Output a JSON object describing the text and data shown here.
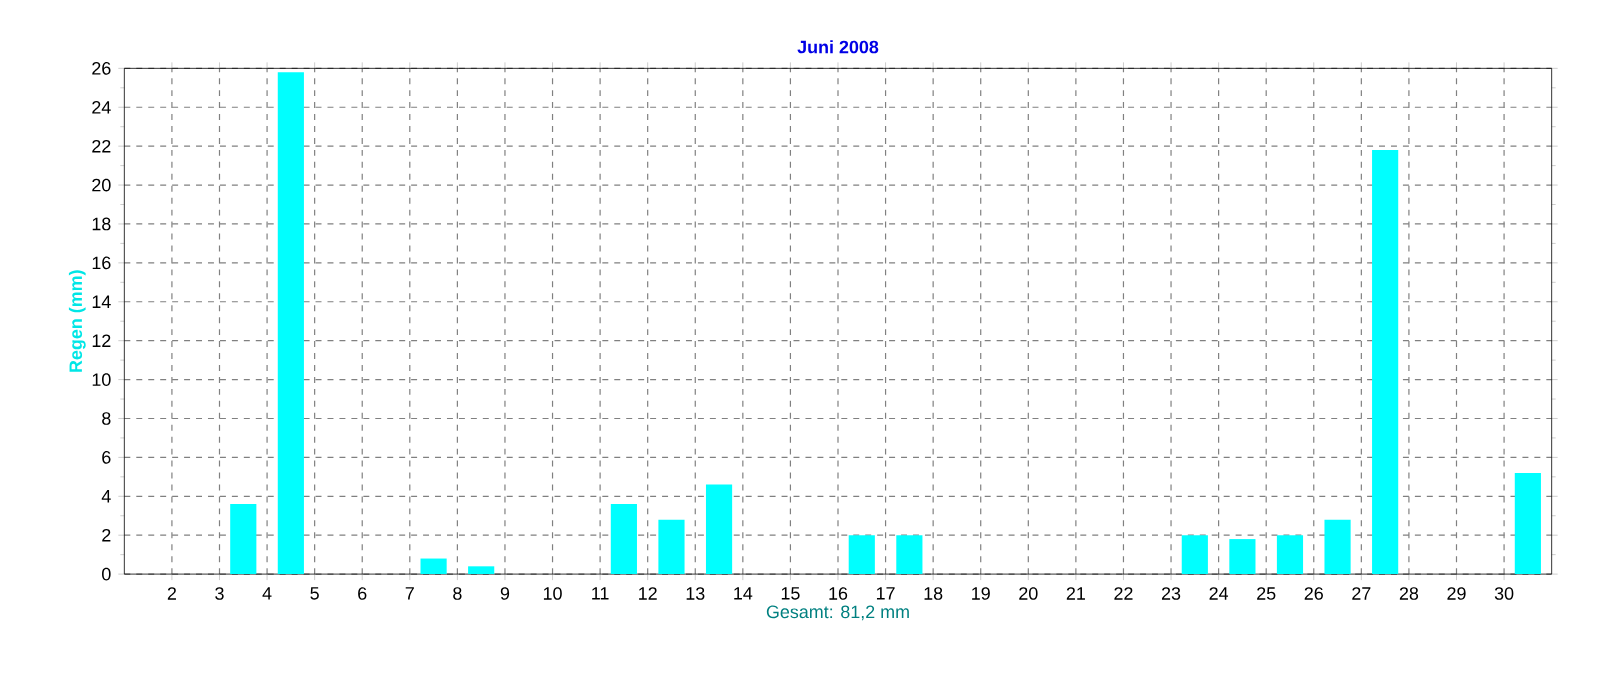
{
  "chart_data": {
    "type": "bar",
    "title": "Juni 2008",
    "ylabel": "Regen  (mm)",
    "xlabel": "Gesamt: 81,2 mm",
    "x": [
      1.5,
      2.5,
      3.5,
      4.5,
      5.5,
      6.5,
      7.5,
      8.5,
      9.5,
      10.5,
      11.5,
      12.5,
      13.5,
      14.5,
      15.5,
      16.5,
      17.5,
      18.5,
      19.5,
      20.5,
      21.5,
      22.5,
      23.5,
      24.5,
      25.5,
      26.5,
      27.5,
      28.5,
      29.5,
      30.5
    ],
    "values": [
      0,
      0,
      3.6,
      25.8,
      0,
      0,
      0.8,
      0.4,
      0,
      0,
      3.6,
      2.8,
      4.6,
      0,
      0,
      2.0,
      2.0,
      0,
      0,
      0,
      0,
      0,
      2.0,
      1.8,
      2.0,
      2.8,
      21.8,
      0,
      0,
      5.2
    ],
    "color": "#00ffff",
    "xlim": [
      1,
      31
    ],
    "xticks": [
      2,
      3,
      4,
      5,
      6,
      7,
      8,
      9,
      10,
      11,
      12,
      13,
      14,
      15,
      16,
      17,
      18,
      19,
      20,
      21,
      22,
      23,
      24,
      25,
      26,
      27,
      28,
      29,
      30
    ],
    "ylim": [
      0,
      26
    ],
    "yticks": [
      0,
      2,
      4,
      6,
      8,
      10,
      12,
      14,
      16,
      18,
      20,
      22,
      24,
      26
    ],
    "grid": true
  }
}
